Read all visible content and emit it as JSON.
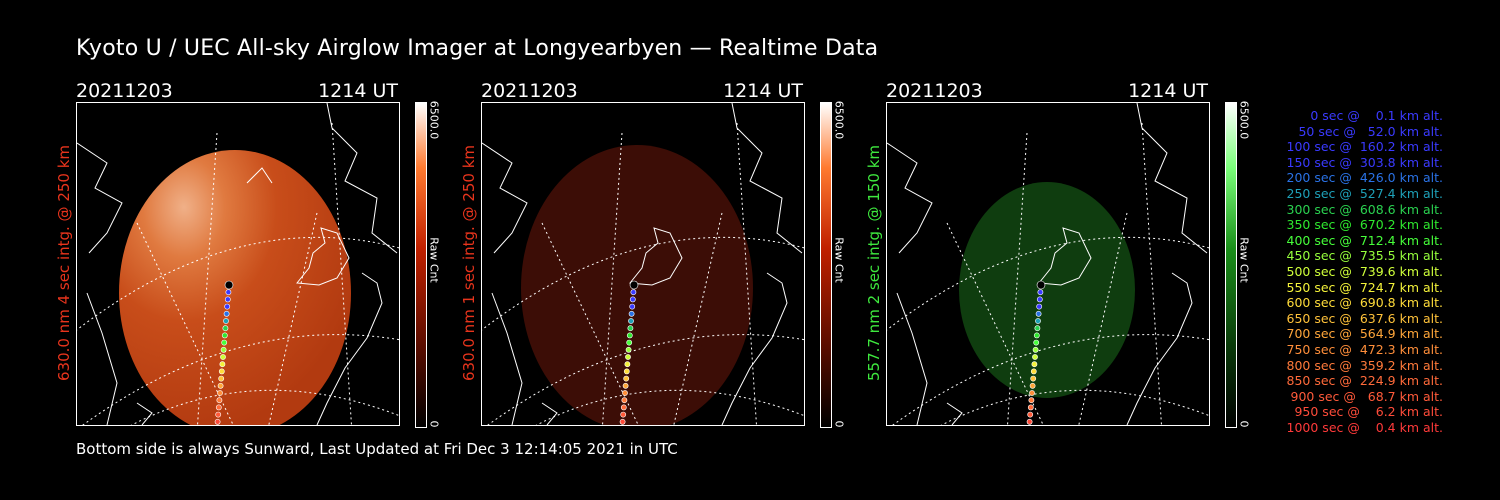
{
  "title": "Kyoto U / UEC All-sky Airglow Imager at Longyearbyen — Realtime Data",
  "panels": [
    {
      "date": "20211203",
      "time": "1214 UT",
      "ylabel": "630.0 nm 4 sec intg. @ 250 km",
      "label_color": "#e8341c",
      "cbar_max": "6500.0",
      "cbar_unit": "Raw Cnt",
      "cbar_min": "0",
      "cbar_color": "#ff2a00"
    },
    {
      "date": "20211203",
      "time": "1214 UT",
      "ylabel": "630.0 nm 1 sec intg. @ 250 km",
      "label_color": "#e8341c",
      "cbar_max": "6500.0",
      "cbar_unit": "Raw Cnt",
      "cbar_min": "0",
      "cbar_color": "#ff2a00"
    },
    {
      "date": "20211203",
      "time": "1214 UT",
      "ylabel": "557.7 nm 2 sec intg. @ 150 km",
      "label_color": "#3ee83e",
      "cbar_max": "6500.0",
      "cbar_unit": "Raw Cnt",
      "cbar_min": "0",
      "cbar_color": "#22dd22"
    }
  ],
  "legend": [
    {
      "text": "   0 sec @    0.1 km alt.",
      "color": "#3a3aff"
    },
    {
      "text": "  50 sec @   52.0 km alt.",
      "color": "#3a3aff"
    },
    {
      "text": " 100 sec @  160.2 km alt.",
      "color": "#3a3aff"
    },
    {
      "text": " 150 sec @  303.8 km alt.",
      "color": "#3a3aff"
    },
    {
      "text": " 200 sec @  426.0 km alt.",
      "color": "#2a72e6"
    },
    {
      "text": " 250 sec @  527.4 km alt.",
      "color": "#1ea0b8"
    },
    {
      "text": " 300 sec @  608.6 km alt.",
      "color": "#2ad250"
    },
    {
      "text": " 350 sec @  670.2 km alt.",
      "color": "#2ee82e"
    },
    {
      "text": " 400 sec @  712.4 km alt.",
      "color": "#46ff3a"
    },
    {
      "text": " 450 sec @  735.5 km alt.",
      "color": "#96ff3c"
    },
    {
      "text": " 500 sec @  739.6 km alt.",
      "color": "#cfff3a"
    },
    {
      "text": " 550 sec @  724.7 km alt.",
      "color": "#f4f23a"
    },
    {
      "text": " 600 sec @  690.8 km alt.",
      "color": "#ffdc3a"
    },
    {
      "text": " 650 sec @  637.6 km alt.",
      "color": "#ffc23a"
    },
    {
      "text": " 700 sec @  564.9 km alt.",
      "color": "#ffa63a"
    },
    {
      "text": " 750 sec @  472.3 km alt.",
      "color": "#ff8e3a"
    },
    {
      "text": " 800 sec @  359.2 km alt.",
      "color": "#ff7a3a"
    },
    {
      "text": " 850 sec @  224.9 km alt.",
      "color": "#ff6a3a"
    },
    {
      "text": " 900 sec @   68.7 km alt.",
      "color": "#ff5a3a"
    },
    {
      "text": " 950 sec @    6.2 km alt.",
      "color": "#ff4c3a"
    },
    {
      "text": "1000 sec @    0.4 km alt.",
      "color": "#ff3a3a"
    }
  ],
  "footer": "Bottom side is always Sunward, Last Updated at Fri Dec  3 12:14:05 2021 in UTC"
}
